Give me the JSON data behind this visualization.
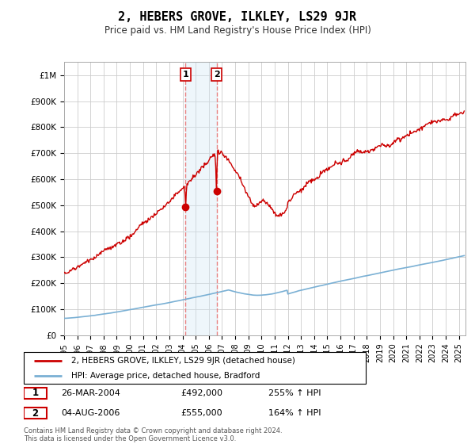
{
  "title": "2, HEBERS GROVE, ILKLEY, LS29 9JR",
  "subtitle": "Price paid vs. HM Land Registry's House Price Index (HPI)",
  "hpi_label": "HPI: Average price, detached house, Bradford",
  "property_label": "2, HEBERS GROVE, ILKLEY, LS29 9JR (detached house)",
  "property_color": "#cc0000",
  "hpi_color": "#7ab0d4",
  "vline_color": "#e88080",
  "span_color": "#d0e8f5",
  "sale1_label": "1",
  "sale1_date": "26-MAR-2004",
  "sale1_price": "£492,000",
  "sale1_hpi": "255% ↑ HPI",
  "sale1_year": 2004.23,
  "sale1_value": 492000,
  "sale2_label": "2",
  "sale2_date": "04-AUG-2006",
  "sale2_price": "£555,000",
  "sale2_hpi": "164% ↑ HPI",
  "sale2_year": 2006.59,
  "sale2_value": 555000,
  "footer": "Contains HM Land Registry data © Crown copyright and database right 2024.\nThis data is licensed under the Open Government Licence v3.0.",
  "ylim_min": 0,
  "ylim_max": 1050000,
  "xlim_min": 1995.0,
  "xlim_max": 2025.5,
  "yticks": [
    0,
    100000,
    200000,
    300000,
    400000,
    500000,
    600000,
    700000,
    800000,
    900000,
    1000000
  ],
  "ytick_labels": [
    "£0",
    "£100K",
    "£200K",
    "£300K",
    "£400K",
    "£500K",
    "£600K",
    "£700K",
    "£800K",
    "£900K",
    "£1M"
  ],
  "xticks": [
    1995,
    1996,
    1997,
    1998,
    1999,
    2000,
    2001,
    2002,
    2003,
    2004,
    2005,
    2006,
    2007,
    2008,
    2009,
    2010,
    2011,
    2012,
    2013,
    2014,
    2015,
    2016,
    2017,
    2018,
    2019,
    2020,
    2021,
    2022,
    2023,
    2024,
    2025
  ]
}
